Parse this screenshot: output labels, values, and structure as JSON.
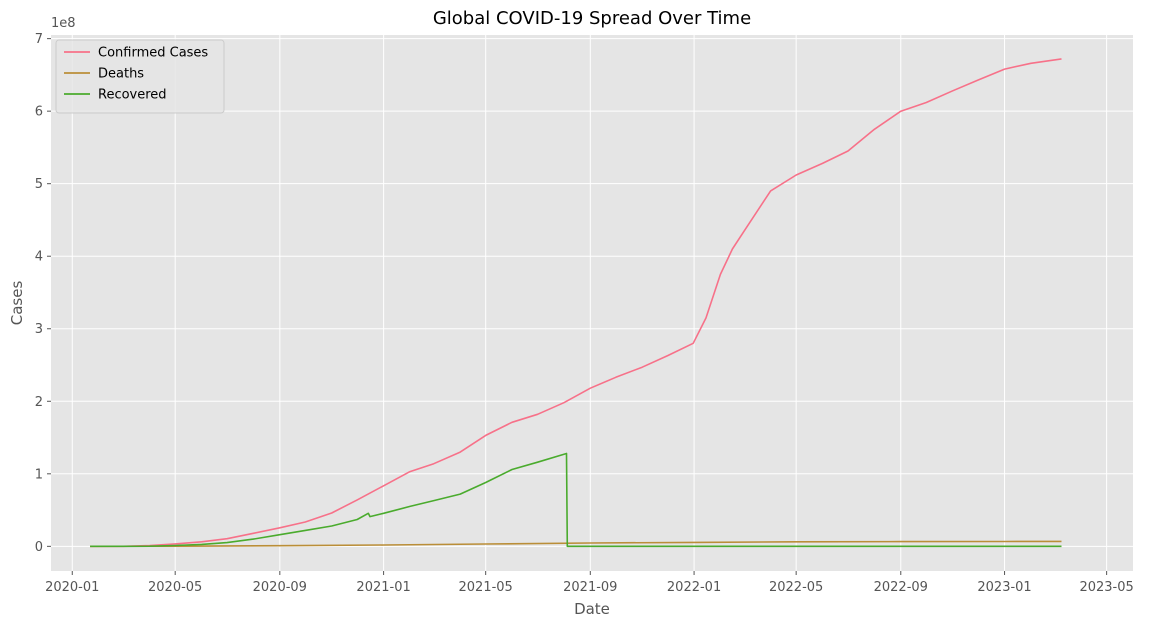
{
  "chart_data": {
    "type": "line",
    "title": "Global COVID-19 Spread Over Time",
    "xlabel": "Date",
    "ylabel": "Cases",
    "y_offset_label": "1e8",
    "y_scale": 100000000,
    "xlim": [
      "2019-12-07",
      "2023-06-01"
    ],
    "ylim": [
      -0.34,
      7.05
    ],
    "grid": true,
    "legend_position": "top-left",
    "x_ticks": [
      {
        "date": "2020-01-01",
        "label": "2020-01"
      },
      {
        "date": "2020-05-01",
        "label": "2020-05"
      },
      {
        "date": "2020-09-01",
        "label": "2020-09"
      },
      {
        "date": "2021-01-01",
        "label": "2021-01"
      },
      {
        "date": "2021-05-01",
        "label": "2021-05"
      },
      {
        "date": "2021-09-01",
        "label": "2021-09"
      },
      {
        "date": "2022-01-01",
        "label": "2022-01"
      },
      {
        "date": "2022-05-01",
        "label": "2022-05"
      },
      {
        "date": "2022-09-01",
        "label": "2022-09"
      },
      {
        "date": "2023-01-01",
        "label": "2023-01"
      },
      {
        "date": "2023-05-01",
        "label": "2023-05"
      }
    ],
    "y_ticks": [
      {
        "value": 0,
        "label": "0"
      },
      {
        "value": 1,
        "label": "1"
      },
      {
        "value": 2,
        "label": "2"
      },
      {
        "value": 3,
        "label": "3"
      },
      {
        "value": 4,
        "label": "4"
      },
      {
        "value": 5,
        "label": "5"
      },
      {
        "value": 6,
        "label": "6"
      },
      {
        "value": 7,
        "label": "7"
      }
    ],
    "series": [
      {
        "name": "Confirmed Cases",
        "color": "#f77189",
        "points": [
          [
            "2020-01-22",
            0.0
          ],
          [
            "2020-03-01",
            0.001
          ],
          [
            "2020-04-01",
            0.01
          ],
          [
            "2020-05-01",
            0.034
          ],
          [
            "2020-06-01",
            0.063
          ],
          [
            "2020-07-01",
            0.105
          ],
          [
            "2020-08-01",
            0.18
          ],
          [
            "2020-09-01",
            0.255
          ],
          [
            "2020-10-01",
            0.335
          ],
          [
            "2020-11-01",
            0.46
          ],
          [
            "2020-12-01",
            0.64
          ],
          [
            "2021-01-01",
            0.835
          ],
          [
            "2021-02-01",
            1.03
          ],
          [
            "2021-03-01",
            1.14
          ],
          [
            "2021-04-01",
            1.3
          ],
          [
            "2021-05-01",
            1.53
          ],
          [
            "2021-06-01",
            1.71
          ],
          [
            "2021-07-01",
            1.82
          ],
          [
            "2021-08-01",
            1.98
          ],
          [
            "2021-09-01",
            2.18
          ],
          [
            "2021-10-01",
            2.33
          ],
          [
            "2021-11-01",
            2.47
          ],
          [
            "2021-12-01",
            2.63
          ],
          [
            "2021-12-31",
            2.8
          ],
          [
            "2022-01-15",
            3.15
          ],
          [
            "2022-02-01",
            3.75
          ],
          [
            "2022-02-15",
            4.1
          ],
          [
            "2022-03-01",
            4.35
          ],
          [
            "2022-04-01",
            4.9
          ],
          [
            "2022-05-01",
            5.12
          ],
          [
            "2022-06-01",
            5.28
          ],
          [
            "2022-07-01",
            5.45
          ],
          [
            "2022-08-01",
            5.75
          ],
          [
            "2022-09-01",
            6.0
          ],
          [
            "2022-10-01",
            6.12
          ],
          [
            "2022-11-01",
            6.28
          ],
          [
            "2022-12-01",
            6.43
          ],
          [
            "2023-01-01",
            6.58
          ],
          [
            "2023-02-01",
            6.66
          ],
          [
            "2023-03-09",
            6.72
          ]
        ]
      },
      {
        "name": "Deaths",
        "color": "#ba8e38",
        "points": [
          [
            "2020-01-22",
            0.0
          ],
          [
            "2020-05-01",
            0.0023
          ],
          [
            "2020-09-01",
            0.0085
          ],
          [
            "2021-01-01",
            0.018
          ],
          [
            "2021-05-01",
            0.032
          ],
          [
            "2021-09-01",
            0.046
          ],
          [
            "2022-01-01",
            0.055
          ],
          [
            "2022-05-01",
            0.063
          ],
          [
            "2022-09-01",
            0.065
          ],
          [
            "2023-01-01",
            0.067
          ],
          [
            "2023-03-09",
            0.068
          ]
        ]
      },
      {
        "name": "Recovered",
        "color": "#4aab2d",
        "points": [
          [
            "2020-01-22",
            0.0
          ],
          [
            "2020-03-01",
            0.0004
          ],
          [
            "2020-04-01",
            0.002
          ],
          [
            "2020-05-01",
            0.011
          ],
          [
            "2020-06-01",
            0.027
          ],
          [
            "2020-07-01",
            0.052
          ],
          [
            "2020-08-01",
            0.1
          ],
          [
            "2020-09-01",
            0.16
          ],
          [
            "2020-10-01",
            0.22
          ],
          [
            "2020-11-01",
            0.28
          ],
          [
            "2020-12-01",
            0.37
          ],
          [
            "2020-12-14",
            0.455
          ],
          [
            "2020-12-16",
            0.41
          ],
          [
            "2021-01-01",
            0.455
          ],
          [
            "2021-02-01",
            0.55
          ],
          [
            "2021-03-01",
            0.63
          ],
          [
            "2021-04-01",
            0.72
          ],
          [
            "2021-05-01",
            0.88
          ],
          [
            "2021-06-01",
            1.06
          ],
          [
            "2021-07-01",
            1.16
          ],
          [
            "2021-08-04",
            1.28
          ],
          [
            "2021-08-05",
            0.0
          ],
          [
            "2023-03-09",
            0.0
          ]
        ]
      }
    ]
  }
}
